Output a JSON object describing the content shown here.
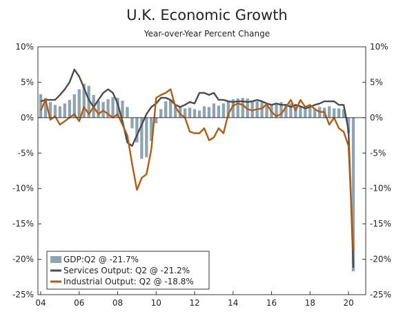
{
  "chart_data": {
    "type": "bar+line",
    "title": "U.K. Economic Growth",
    "subtitle": "Year-over-Year Percent Change",
    "ylim": [
      -25,
      10
    ],
    "y_ticks_left": [
      "10%",
      "5%",
      "0%",
      "-5%",
      "-10%",
      "-15%",
      "-20%",
      "-25%"
    ],
    "y_ticks_right": [
      "10%",
      "5%",
      "0%",
      "-5%",
      "-10%",
      "-15%",
      "-20%",
      "-25%"
    ],
    "x_ticks": [
      "04",
      "06",
      "08",
      "10",
      "12",
      "14",
      "16",
      "18",
      "20"
    ],
    "x_range": [
      2004.0,
      2020.75
    ],
    "grid": false,
    "legend_position": "bottom-left",
    "series": [
      {
        "name": "GDP:Q2 @ -21.7%",
        "kind": "bar",
        "color": "#8ea4b3",
        "x": [
          2004.0,
          2004.25,
          2004.5,
          2004.75,
          2005.0,
          2005.25,
          2005.5,
          2005.75,
          2006.0,
          2006.25,
          2006.5,
          2006.75,
          2007.0,
          2007.25,
          2007.5,
          2007.75,
          2008.0,
          2008.25,
          2008.5,
          2008.75,
          2009.0,
          2009.25,
          2009.5,
          2009.75,
          2010.0,
          2010.25,
          2010.5,
          2010.75,
          2011.0,
          2011.25,
          2011.5,
          2011.75,
          2012.0,
          2012.25,
          2012.5,
          2012.75,
          2013.0,
          2013.25,
          2013.5,
          2013.75,
          2014.0,
          2014.25,
          2014.5,
          2014.75,
          2015.0,
          2015.25,
          2015.5,
          2015.75,
          2016.0,
          2016.25,
          2016.5,
          2016.75,
          2017.0,
          2017.25,
          2017.5,
          2017.75,
          2018.0,
          2018.25,
          2018.5,
          2018.75,
          2019.0,
          2019.25,
          2019.5,
          2019.75,
          2020.0,
          2020.25
        ],
        "values": [
          3.3,
          2.8,
          2.2,
          1.8,
          1.6,
          2.0,
          2.5,
          3.3,
          4.0,
          4.8,
          4.5,
          3.2,
          2.4,
          2.2,
          2.6,
          2.9,
          2.8,
          2.4,
          1.5,
          -1.5,
          -3.5,
          -5.8,
          -5.6,
          -3.3,
          -0.8,
          1.2,
          2.3,
          2.5,
          1.6,
          1.6,
          1.3,
          1.4,
          1.2,
          1.0,
          1.6,
          1.5,
          2.0,
          1.7,
          2.0,
          2.3,
          2.6,
          2.7,
          2.8,
          2.7,
          2.2,
          2.3,
          2.2,
          2.0,
          1.8,
          1.9,
          2.2,
          1.9,
          2.0,
          1.8,
          1.6,
          1.4,
          1.4,
          1.3,
          1.5,
          1.4,
          1.6,
          1.3,
          1.3,
          1.2,
          -2.2,
          -21.7
        ]
      },
      {
        "name": "Services Output: Q2 @ -21.2%",
        "kind": "line",
        "color": "#4a4a4a",
        "x": [
          2004.0,
          2004.25,
          2004.5,
          2004.75,
          2005.0,
          2005.25,
          2005.5,
          2005.75,
          2006.0,
          2006.25,
          2006.5,
          2006.75,
          2007.0,
          2007.25,
          2007.5,
          2007.75,
          2008.0,
          2008.25,
          2008.5,
          2008.75,
          2009.0,
          2009.25,
          2009.5,
          2009.75,
          2010.0,
          2010.25,
          2010.5,
          2010.75,
          2011.0,
          2011.25,
          2011.5,
          2011.75,
          2012.0,
          2012.25,
          2012.5,
          2012.75,
          2013.0,
          2013.25,
          2013.5,
          2013.75,
          2014.0,
          2014.25,
          2014.5,
          2014.75,
          2015.0,
          2015.25,
          2015.5,
          2015.75,
          2016.0,
          2016.25,
          2016.5,
          2016.75,
          2017.0,
          2017.25,
          2017.5,
          2017.75,
          2018.0,
          2018.25,
          2018.5,
          2018.75,
          2019.0,
          2019.25,
          2019.5,
          2019.75,
          2020.0,
          2020.25
        ],
        "values": [
          2.3,
          2.5,
          2.5,
          2.5,
          3.2,
          4.0,
          5.0,
          6.8,
          5.8,
          4.2,
          2.5,
          1.5,
          2.5,
          3.5,
          4.0,
          3.5,
          2.0,
          -0.5,
          -3.5,
          -4.0,
          -2.5,
          -1.0,
          0.5,
          1.5,
          2.0,
          2.8,
          2.8,
          2.5,
          1.8,
          1.5,
          1.8,
          2.2,
          2.0,
          3.5,
          3.5,
          3.2,
          3.5,
          2.5,
          2.5,
          2.3,
          2.2,
          2.3,
          2.3,
          2.2,
          2.3,
          2.5,
          2.3,
          2.0,
          1.8,
          2.0,
          1.8,
          1.8,
          1.5,
          1.8,
          1.6,
          1.3,
          1.5,
          1.8,
          2.0,
          2.3,
          2.3,
          2.3,
          1.8,
          1.8,
          -1.8,
          -21.2
        ]
      },
      {
        "name": "Industrial Output: Q2 @ -18.8%",
        "kind": "line",
        "color": "#b35a12",
        "x": [
          2004.0,
          2004.25,
          2004.5,
          2004.75,
          2005.0,
          2005.25,
          2005.5,
          2005.75,
          2006.0,
          2006.25,
          2006.5,
          2006.75,
          2007.0,
          2007.25,
          2007.5,
          2007.75,
          2008.0,
          2008.25,
          2008.5,
          2008.75,
          2009.0,
          2009.25,
          2009.5,
          2009.75,
          2010.0,
          2010.25,
          2010.5,
          2010.75,
          2011.0,
          2011.25,
          2011.5,
          2011.75,
          2012.0,
          2012.25,
          2012.5,
          2012.75,
          2013.0,
          2013.25,
          2013.5,
          2013.75,
          2014.0,
          2014.25,
          2014.5,
          2014.75,
          2015.0,
          2015.25,
          2015.5,
          2015.75,
          2016.0,
          2016.25,
          2016.5,
          2016.75,
          2017.0,
          2017.25,
          2017.5,
          2017.75,
          2018.0,
          2018.25,
          2018.5,
          2018.75,
          2019.0,
          2019.25,
          2019.5,
          2019.75,
          2020.0,
          2020.25
        ],
        "values": [
          1.0,
          2.5,
          -0.3,
          0.2,
          -1.0,
          -0.5,
          0.0,
          0.5,
          -0.5,
          1.5,
          0.5,
          1.5,
          0.5,
          1.0,
          0.5,
          0.0,
          0.5,
          -1.0,
          -2.5,
          -6.5,
          -10.2,
          -8.5,
          -8.0,
          -4.5,
          2.8,
          3.2,
          3.5,
          4.0,
          1.5,
          0.5,
          0.0,
          -2.0,
          -2.2,
          -2.2,
          -1.5,
          -3.2,
          -2.8,
          -1.5,
          -2.2,
          0.5,
          1.7,
          2.0,
          1.8,
          1.2,
          1.0,
          1.2,
          1.3,
          1.9,
          0.8,
          0.2,
          0.5,
          1.5,
          2.5,
          1.0,
          2.5,
          1.5,
          1.8,
          1.2,
          0.8,
          0.8,
          -1.0,
          0.0,
          -1.5,
          -2.0,
          -4.0,
          -18.8
        ]
      }
    ]
  }
}
